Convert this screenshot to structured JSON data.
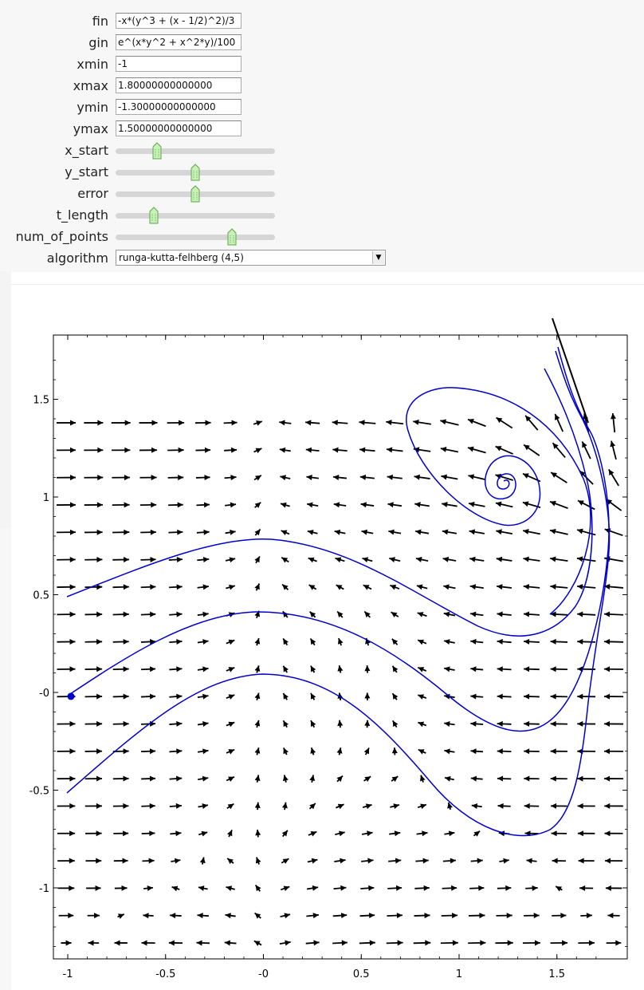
{
  "controls": {
    "fin": {
      "label": "fin",
      "value": "-x*(y^3 + (x - 1/2)^2)/3"
    },
    "gin": {
      "label": "gin",
      "value": "e^(x*y^2 + x^2*y)/100"
    },
    "xmin": {
      "label": "xmin",
      "value": "-1"
    },
    "xmax": {
      "label": "xmax",
      "value": "1.80000000000000"
    },
    "ymin": {
      "label": "ymin",
      "value": "-1.30000000000000"
    },
    "ymax": {
      "label": "ymax",
      "value": "1.50000000000000"
    },
    "sliders": [
      {
        "label": "x_start",
        "level": 0.26
      },
      {
        "label": "y_start",
        "level": 0.5
      },
      {
        "label": "error",
        "level": 0.5
      },
      {
        "label": "t_length",
        "level": 0.24
      },
      {
        "label": "num_of_points",
        "level": 0.73
      }
    ],
    "algorithm": {
      "label": "algorithm",
      "value": "runga-kutta-felhberg (4,5)"
    }
  },
  "chart_data": {
    "type": "vector-field",
    "x_ticks": [
      "-1",
      "-0.5",
      "-0",
      "0.5",
      "1",
      "1.5"
    ],
    "y_ticks": [
      "1.5",
      "1",
      "0.5",
      "-0",
      "-0.5",
      "-1"
    ],
    "xlim": [
      -1.05,
      1.85
    ],
    "ylim": [
      -1.35,
      1.8
    ],
    "field": "f(x,y) = -x*(y^3 + (x - 1/2)^2)/3, g(x,y) = e^(x*y^2 + x^2*y)/100",
    "start_point": {
      "x": -1.0,
      "y": -0.02
    },
    "arrow_color": "#000000",
    "trajectory_color": "#0000cc",
    "grid": false
  }
}
